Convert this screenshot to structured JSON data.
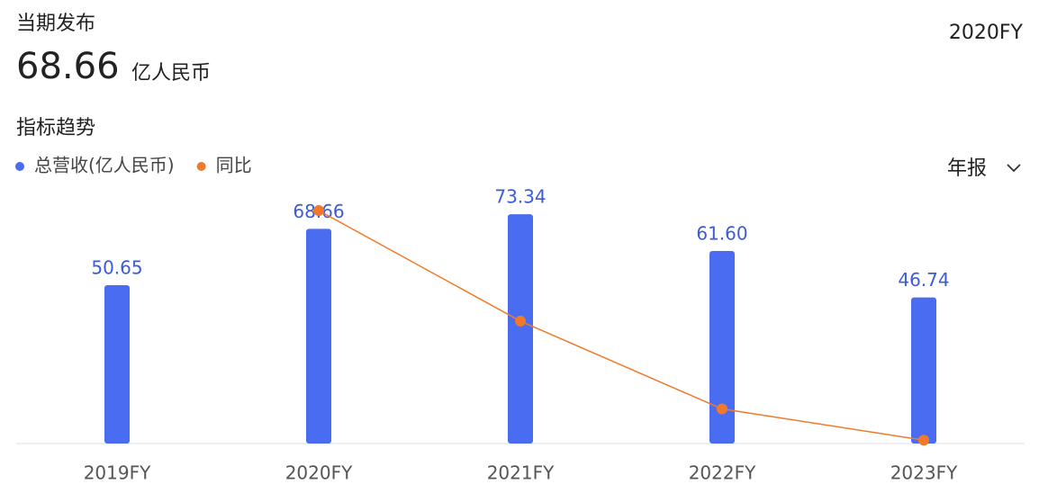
{
  "header": {
    "title": "当期发布",
    "value": "68.66",
    "unit": "亿人民币",
    "period": "2020FY",
    "section": "指标趋势",
    "selector": "年报"
  },
  "chart_data": {
    "type": "bar",
    "categories": [
      "2019FY",
      "2020FY",
      "2021FY",
      "2022FY",
      "2023FY"
    ],
    "ylim": [
      0,
      80
    ],
    "y2lim": [
      -25,
      40
    ],
    "series": [
      {
        "name": "总营收(亿人民币)",
        "color": "#4a6cf0",
        "values": [
          50.65,
          68.66,
          73.34,
          61.6,
          46.74
        ],
        "value_labels": [
          "50.65",
          "68.66",
          "73.34",
          "61.60",
          "46.74"
        ]
      },
      {
        "name": "同比",
        "color": "#f07a2a",
        "type": "line",
        "axis": "y2",
        "values": [
          null,
          35.56,
          6.82,
          -16.01,
          -24.12
        ]
      }
    ]
  }
}
